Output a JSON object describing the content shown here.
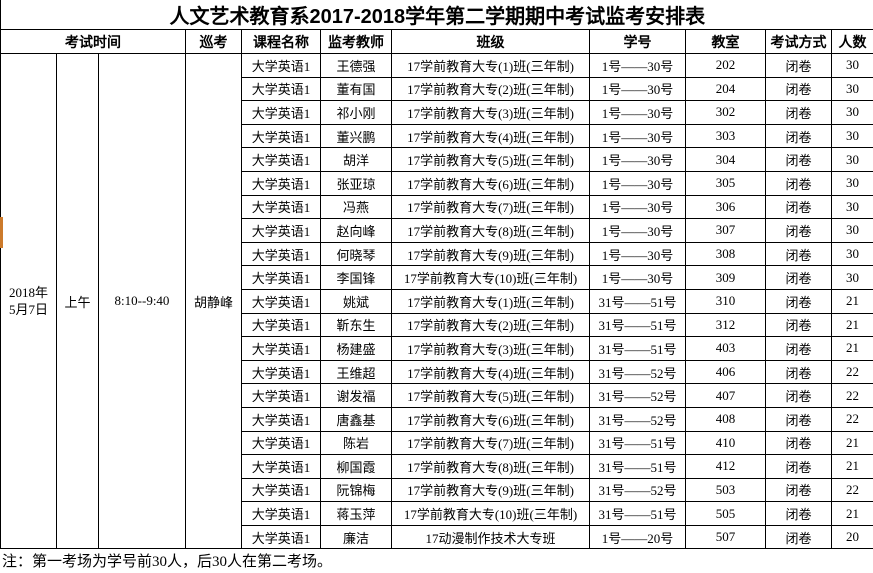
{
  "title": "人文艺术教育系2017-2018学年第二学期期中考试监考安排表",
  "header": {
    "exam_time": "考试时间",
    "patrol": "巡考",
    "course": "课程名称",
    "invigilator": "监考教师",
    "class_name": "班级",
    "student_ids": "学号",
    "room": "教室",
    "method": "考试方式",
    "count": "人数"
  },
  "session": {
    "date": "2018年\n5月7日",
    "period": "上午",
    "time": "8:10--9:40",
    "patrol": "胡静峰"
  },
  "rows": [
    {
      "course": "大学英语1",
      "teacher": "王德强",
      "class_name": "17学前教育大专(1)班(三年制)",
      "ids": "1号——30号",
      "room": "202",
      "method": "闭卷",
      "count": "30"
    },
    {
      "course": "大学英语1",
      "teacher": "董有国",
      "class_name": "17学前教育大专(2)班(三年制)",
      "ids": "1号——30号",
      "room": "204",
      "method": "闭卷",
      "count": "30"
    },
    {
      "course": "大学英语1",
      "teacher": "祁小刚",
      "class_name": "17学前教育大专(3)班(三年制)",
      "ids": "1号——30号",
      "room": "302",
      "method": "闭卷",
      "count": "30"
    },
    {
      "course": "大学英语1",
      "teacher": "董兴鹏",
      "class_name": "17学前教育大专(4)班(三年制)",
      "ids": "1号——30号",
      "room": "303",
      "method": "闭卷",
      "count": "30"
    },
    {
      "course": "大学英语1",
      "teacher": "胡洋",
      "class_name": "17学前教育大专(5)班(三年制)",
      "ids": "1号——30号",
      "room": "304",
      "method": "闭卷",
      "count": "30"
    },
    {
      "course": "大学英语1",
      "teacher": "张亚琼",
      "class_name": "17学前教育大专(6)班(三年制)",
      "ids": "1号——30号",
      "room": "305",
      "method": "闭卷",
      "count": "30"
    },
    {
      "course": "大学英语1",
      "teacher": "冯燕",
      "class_name": "17学前教育大专(7)班(三年制)",
      "ids": "1号——30号",
      "room": "306",
      "method": "闭卷",
      "count": "30"
    },
    {
      "course": "大学英语1",
      "teacher": "赵向峰",
      "class_name": "17学前教育大专(8)班(三年制)",
      "ids": "1号——30号",
      "room": "307",
      "method": "闭卷",
      "count": "30"
    },
    {
      "course": "大学英语1",
      "teacher": "何晓琴",
      "class_name": "17学前教育大专(9)班(三年制)",
      "ids": "1号——30号",
      "room": "308",
      "method": "闭卷",
      "count": "30"
    },
    {
      "course": "大学英语1",
      "teacher": "李国锋",
      "class_name": "17学前教育大专(10)班(三年制)",
      "ids": "1号——30号",
      "room": "309",
      "method": "闭卷",
      "count": "30"
    },
    {
      "course": "大学英语1",
      "teacher": "姚斌",
      "class_name": "17学前教育大专(1)班(三年制)",
      "ids": "31号——51号",
      "room": "310",
      "method": "闭卷",
      "count": "21"
    },
    {
      "course": "大学英语1",
      "teacher": "靳东生",
      "class_name": "17学前教育大专(2)班(三年制)",
      "ids": "31号——51号",
      "room": "312",
      "method": "闭卷",
      "count": "21"
    },
    {
      "course": "大学英语1",
      "teacher": "杨建盛",
      "class_name": "17学前教育大专(3)班(三年制)",
      "ids": "31号——51号",
      "room": "403",
      "method": "闭卷",
      "count": "21"
    },
    {
      "course": "大学英语1",
      "teacher": "王维超",
      "class_name": "17学前教育大专(4)班(三年制)",
      "ids": "31号——52号",
      "room": "406",
      "method": "闭卷",
      "count": "22"
    },
    {
      "course": "大学英语1",
      "teacher": "谢发福",
      "class_name": "17学前教育大专(5)班(三年制)",
      "ids": "31号——52号",
      "room": "407",
      "method": "闭卷",
      "count": "22"
    },
    {
      "course": "大学英语1",
      "teacher": "唐鑫基",
      "class_name": "17学前教育大专(6)班(三年制)",
      "ids": "31号——52号",
      "room": "408",
      "method": "闭卷",
      "count": "22"
    },
    {
      "course": "大学英语1",
      "teacher": "陈岩",
      "class_name": "17学前教育大专(7)班(三年制)",
      "ids": "31号——51号",
      "room": "410",
      "method": "闭卷",
      "count": "21"
    },
    {
      "course": "大学英语1",
      "teacher": "柳国霞",
      "class_name": "17学前教育大专(8)班(三年制)",
      "ids": "31号——51号",
      "room": "412",
      "method": "闭卷",
      "count": "21"
    },
    {
      "course": "大学英语1",
      "teacher": "阮锦梅",
      "class_name": "17学前教育大专(9)班(三年制)",
      "ids": "31号——52号",
      "room": "503",
      "method": "闭卷",
      "count": "22"
    },
    {
      "course": "大学英语1",
      "teacher": "蒋玉萍",
      "class_name": "17学前教育大专(10)班(三年制)",
      "ids": "31号——51号",
      "room": "505",
      "method": "闭卷",
      "count": "21"
    },
    {
      "course": "大学英语1",
      "teacher": "廉洁",
      "class_name": "17动漫制作技术大专班",
      "ids": "1号——20号",
      "room": "507",
      "method": "闭卷",
      "count": "20"
    }
  ],
  "note": "注：第一考场为学号前30人，后30人在第二考场。",
  "colors": {
    "border": "#000000",
    "background": "#ffffff",
    "left_marker": "#cc7a2b"
  }
}
